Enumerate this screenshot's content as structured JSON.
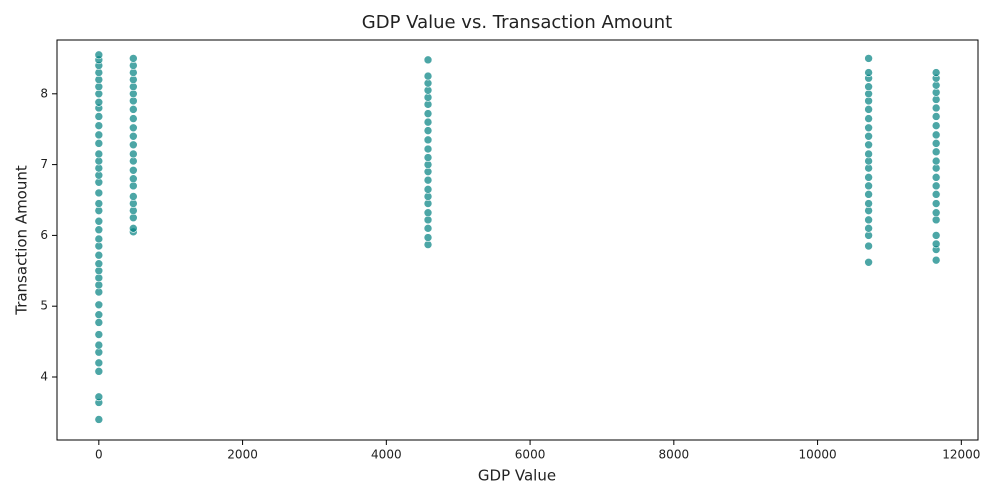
{
  "chart_data": {
    "type": "scatter",
    "title": "GDP Value vs. Transaction Amount",
    "x_label": "GDP Value",
    "y_label": "Transaction Amount",
    "color": "#008080",
    "grid": false,
    "xlim": [
      -582,
      12232
    ],
    "ylim": [
      3.11,
      8.76
    ],
    "xticks": [
      0,
      2000,
      4000,
      6000,
      8000,
      10000,
      12000
    ],
    "yticks": [
      4,
      5,
      6,
      7,
      8
    ],
    "x": [
      0,
      0,
      0,
      0,
      0,
      0,
      0,
      0,
      0,
      0,
      0,
      0,
      0,
      0,
      0,
      0,
      0,
      0,
      0,
      0,
      0,
      0,
      0,
      0,
      0,
      0,
      0,
      0,
      0,
      0,
      0,
      0,
      0,
      0,
      0,
      0,
      0,
      0,
      0,
      0,
      0,
      0,
      480,
      480,
      480,
      480,
      480,
      480,
      480,
      480,
      480,
      480,
      480,
      480,
      480,
      480,
      480,
      480,
      480,
      480,
      480,
      480,
      480,
      480,
      480,
      4580,
      4580,
      4580,
      4580,
      4580,
      4580,
      4580,
      4580,
      4580,
      4580,
      4580,
      4580,
      4580,
      4580,
      4580,
      4580,
      4580,
      4580,
      4580,
      4580,
      4580,
      4580,
      4580,
      10710,
      10710,
      10710,
      10710,
      10710,
      10710,
      10710,
      10710,
      10710,
      10710,
      10710,
      10710,
      10710,
      10710,
      10710,
      10710,
      10710,
      10710,
      10710,
      10710,
      10710,
      10710,
      10710,
      10710,
      11650,
      11650,
      11650,
      11650,
      11650,
      11650,
      11650,
      11650,
      11650,
      11650,
      11650,
      11650,
      11650,
      11650,
      11650,
      11650,
      11650,
      11650,
      11650,
      11650,
      11650,
      11650,
      11650
    ],
    "values": [
      3.4,
      3.64,
      3.72,
      4.08,
      4.2,
      4.35,
      4.45,
      4.6,
      4.77,
      4.88,
      5.02,
      5.2,
      5.3,
      5.4,
      5.5,
      5.6,
      5.72,
      5.85,
      5.95,
      6.08,
      6.2,
      6.35,
      6.45,
      6.6,
      6.75,
      6.85,
      6.95,
      7.05,
      7.15,
      7.3,
      7.42,
      7.55,
      7.68,
      7.8,
      7.88,
      8.0,
      8.1,
      8.2,
      8.3,
      8.4,
      8.48,
      8.55,
      6.05,
      6.1,
      6.25,
      6.35,
      6.45,
      6.55,
      6.7,
      6.8,
      6.92,
      7.05,
      7.15,
      7.28,
      7.4,
      7.52,
      7.65,
      7.78,
      7.9,
      8.0,
      8.1,
      8.2,
      8.3,
      8.4,
      8.5,
      5.87,
      5.97,
      6.1,
      6.22,
      6.32,
      6.45,
      6.55,
      6.65,
      6.78,
      6.9,
      7.0,
      7.1,
      7.22,
      7.35,
      7.48,
      7.6,
      7.72,
      7.85,
      7.95,
      8.05,
      8.15,
      8.25,
      8.48,
      5.62,
      5.85,
      6.0,
      6.1,
      6.22,
      6.35,
      6.45,
      6.58,
      6.7,
      6.82,
      6.95,
      7.05,
      7.15,
      7.28,
      7.4,
      7.52,
      7.65,
      7.78,
      7.9,
      8.0,
      8.1,
      8.22,
      8.3,
      8.5,
      5.65,
      5.8,
      5.88,
      6.0,
      6.22,
      6.32,
      6.45,
      6.58,
      6.7,
      6.82,
      6.95,
      7.05,
      7.18,
      7.3,
      7.42,
      7.55,
      7.68,
      7.8,
      7.92,
      8.02,
      8.12,
      8.22,
      8.3
    ]
  }
}
